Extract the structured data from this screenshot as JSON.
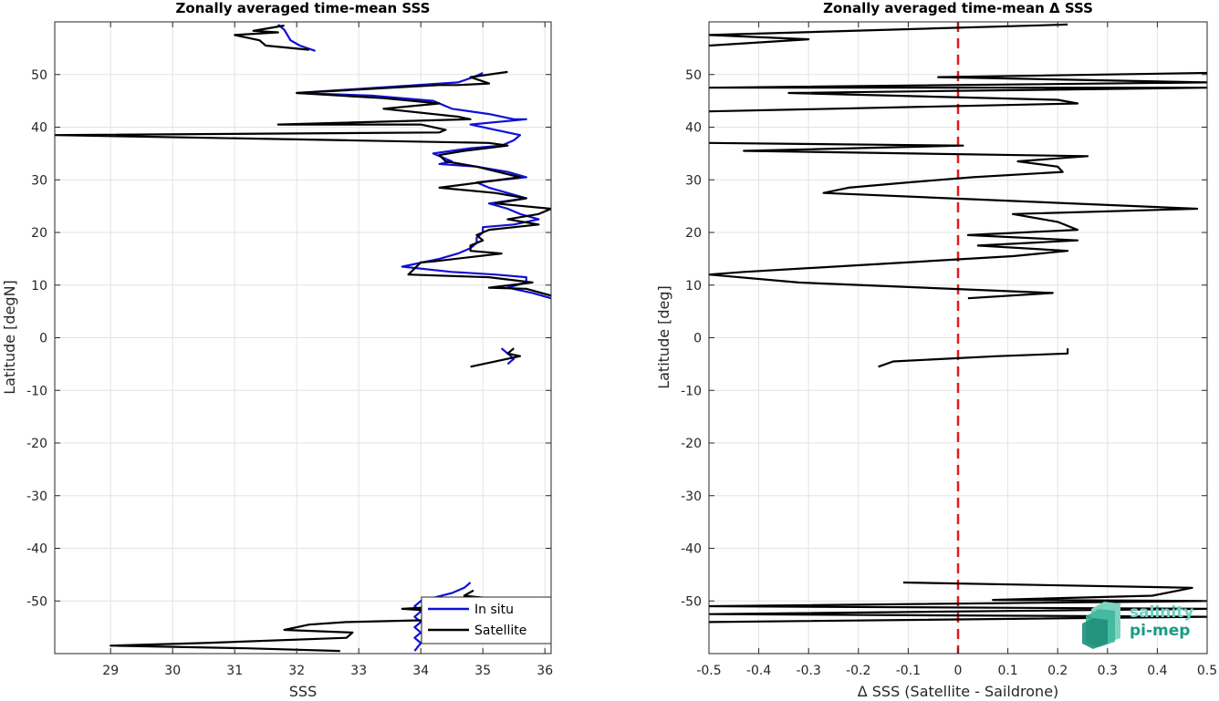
{
  "chart_data": [
    {
      "type": "line",
      "title": "Zonally averaged time-mean SSS",
      "xlabel": "SSS",
      "ylabel": "Latitude [degN]",
      "xlim": [
        28.1,
        36.1
      ],
      "ylim": [
        -60,
        60
      ],
      "xticks": [
        29,
        30,
        31,
        32,
        33,
        34,
        35,
        36
      ],
      "yticks": [
        -50,
        -40,
        -30,
        -20,
        -10,
        0,
        10,
        20,
        30,
        40,
        50
      ],
      "grid": true,
      "legend": {
        "position": "bottom-right",
        "entries": [
          "In situ",
          "Satellite"
        ]
      },
      "series": [
        {
          "name": "In situ",
          "color": "#1010d6",
          "segments": [
            [
              [
                31.7,
                59.5
              ],
              [
                31.8,
                58.5
              ],
              [
                31.85,
                57.5
              ],
              [
                31.9,
                56.5
              ],
              [
                32.05,
                55.5
              ],
              [
                32.3,
                54.5
              ]
            ],
            [
              [
                35.0,
                50.3
              ],
              [
                34.85,
                49.5
              ],
              [
                34.6,
                48.5
              ],
              [
                32.0,
                46.5
              ],
              [
                33.2,
                46.0
              ],
              [
                33.7,
                45.5
              ],
              [
                34.2,
                45.0
              ],
              [
                34.4,
                44.0
              ],
              [
                34.5,
                43.5
              ],
              [
                35.1,
                42.5
              ],
              [
                35.5,
                41.5
              ],
              [
                35.7,
                41.5
              ],
              [
                34.8,
                40.5
              ],
              [
                35.2,
                39.5
              ],
              [
                35.6,
                38.5
              ],
              [
                35.5,
                37.5
              ],
              [
                35.3,
                36.5
              ],
              [
                34.8,
                36.0
              ],
              [
                34.2,
                35.0
              ],
              [
                34.3,
                34.5
              ],
              [
                34.5,
                33.5
              ],
              [
                34.3,
                33.0
              ],
              [
                34.9,
                32.5
              ],
              [
                35.4,
                31.5
              ],
              [
                35.7,
                30.5
              ],
              [
                34.9,
                29.5
              ],
              [
                35.1,
                28.5
              ],
              [
                35.4,
                27.5
              ],
              [
                35.7,
                26.5
              ],
              [
                35.1,
                25.5
              ],
              [
                35.4,
                24.5
              ],
              [
                35.6,
                23.5
              ],
              [
                35.9,
                22.5
              ],
              [
                35.5,
                21.5
              ],
              [
                35.0,
                21.0
              ],
              [
                35.0,
                20.0
              ],
              [
                34.9,
                19.0
              ],
              [
                34.9,
                18.0
              ],
              [
                34.8,
                17.0
              ],
              [
                34.6,
                16.0
              ],
              [
                34.3,
                15.0
              ],
              [
                33.7,
                13.5
              ],
              [
                34.5,
                12.5
              ],
              [
                35.2,
                12.0
              ],
              [
                35.7,
                11.5
              ],
              [
                35.7,
                10.5
              ],
              [
                35.4,
                9.5
              ],
              [
                35.8,
                8.5
              ],
              [
                36.1,
                7.5
              ]
            ],
            [
              [
                35.3,
                -2.0
              ],
              [
                35.4,
                -3.0
              ],
              [
                35.5,
                -4.0
              ],
              [
                35.4,
                -5.0
              ]
            ],
            [
              [
                34.8,
                -46.5
              ],
              [
                34.7,
                -47.5
              ],
              [
                34.5,
                -48.5
              ],
              [
                34.0,
                -50.0
              ],
              [
                33.9,
                -51.0
              ],
              [
                34.0,
                -52.0
              ],
              [
                33.9,
                -53.0
              ],
              [
                34.0,
                -54.0
              ],
              [
                33.9,
                -55.0
              ],
              [
                34.0,
                -56.0
              ],
              [
                33.9,
                -57.0
              ],
              [
                34.0,
                -58.0
              ],
              [
                33.9,
                -59.5
              ]
            ]
          ]
        },
        {
          "name": "Satellite",
          "color": "#000000",
          "segments": [
            [
              [
                31.8,
                59.3
              ],
              [
                31.5,
                58.7
              ],
              [
                31.3,
                58.3
              ],
              [
                31.7,
                58.0
              ],
              [
                31.0,
                57.5
              ],
              [
                31.4,
                56.5
              ],
              [
                31.5,
                55.5
              ],
              [
                32.2,
                54.7
              ]
            ],
            [
              [
                35.4,
                50.5
              ],
              [
                34.8,
                49.5
              ],
              [
                35.1,
                48.3
              ],
              [
                34.6,
                48.0
              ],
              [
                34.3,
                48.0
              ],
              [
                32.0,
                46.5
              ],
              [
                33.4,
                45.5
              ],
              [
                34.3,
                44.5
              ],
              [
                33.4,
                43.5
              ],
              [
                34.6,
                42.0
              ],
              [
                34.8,
                41.5
              ],
              [
                31.7,
                40.5
              ],
              [
                34.0,
                40.5
              ],
              [
                34.4,
                39.5
              ],
              [
                34.3,
                39.0
              ],
              [
                28.1,
                38.5
              ],
              [
                32.8,
                37.5
              ],
              [
                35.1,
                37.0
              ],
              [
                35.4,
                36.5
              ],
              [
                34.7,
                35.5
              ],
              [
                34.3,
                34.7
              ],
              [
                34.4,
                33.5
              ],
              [
                34.9,
                32.5
              ],
              [
                35.6,
                30.5
              ],
              [
                34.3,
                28.5
              ],
              [
                35.2,
                27.5
              ],
              [
                35.7,
                26.5
              ],
              [
                35.2,
                25.5
              ],
              [
                36.1,
                24.5
              ],
              [
                35.9,
                23.5
              ],
              [
                35.4,
                22.5
              ],
              [
                35.9,
                21.5
              ],
              [
                35.1,
                20.5
              ],
              [
                34.9,
                19.5
              ],
              [
                35.0,
                18.5
              ],
              [
                34.8,
                17.5
              ],
              [
                34.8,
                16.5
              ],
              [
                35.3,
                16.0
              ],
              [
                34.2,
                14.5
              ],
              [
                34.0,
                14.3
              ],
              [
                33.8,
                12.0
              ],
              [
                35.1,
                11.5
              ],
              [
                35.8,
                10.5
              ],
              [
                35.1,
                9.5
              ],
              [
                35.7,
                9.3
              ],
              [
                36.1,
                8.0
              ]
            ],
            [
              [
                35.5,
                -2.0
              ],
              [
                35.4,
                -3.0
              ],
              [
                35.6,
                -3.5
              ],
              [
                34.8,
                -5.5
              ]
            ],
            [
              [
                34.85,
                -48.0
              ],
              [
                34.7,
                -49.0
              ],
              [
                35.1,
                -49.5
              ],
              [
                34.85,
                -50.0
              ],
              [
                34.5,
                -51.0
              ],
              [
                33.7,
                -51.5
              ],
              [
                34.4,
                -52.0
              ],
              [
                34.8,
                -53.0
              ],
              [
                34.6,
                -53.5
              ],
              [
                32.8,
                -54.0
              ],
              [
                32.2,
                -54.5
              ],
              [
                31.8,
                -55.5
              ],
              [
                32.9,
                -56.0
              ],
              [
                32.8,
                -57.0
              ],
              [
                30.5,
                -58.0
              ],
              [
                29.0,
                -58.5
              ],
              [
                31.2,
                -59.0
              ],
              [
                32.7,
                -59.5
              ]
            ]
          ]
        }
      ]
    },
    {
      "type": "line",
      "title": "Zonally averaged time-mean Δ SSS",
      "xlabel": "Δ SSS (Satellite - Saildrone)",
      "ylabel": "Latitude [deg]",
      "xlim": [
        -0.5,
        0.5
      ],
      "ylim": [
        -60,
        60
      ],
      "xticks": [
        -0.5,
        -0.4,
        -0.3,
        -0.2,
        -0.1,
        0,
        0.1,
        0.2,
        0.3,
        0.4,
        0.5
      ],
      "yticks": [
        -50,
        -40,
        -30,
        -20,
        -10,
        0,
        10,
        20,
        30,
        40,
        50
      ],
      "grid": true,
      "reference_line": {
        "x": 0,
        "color": "#e31a1c",
        "style": "dashed"
      },
      "series": [
        {
          "color": "#000000",
          "segments": [
            [
              [
                0.22,
                59.5
              ],
              [
                -0.5,
                57.5
              ],
              [
                -0.3,
                56.7
              ],
              [
                -0.5,
                55.5
              ]
            ],
            [
              [
                0.5,
                50.3
              ],
              [
                -0.04,
                49.5
              ],
              [
                0.5,
                48.5
              ],
              [
                -0.5,
                47.5
              ],
              [
                0.5,
                47.5
              ],
              [
                -0.34,
                46.5
              ],
              [
                0.2,
                45.2
              ],
              [
                0.24,
                44.5
              ],
              [
                -0.5,
                43.0
              ]
            ],
            [
              [
                -0.5,
                37.0
              ],
              [
                0.01,
                36.5
              ],
              [
                -0.43,
                35.5
              ],
              [
                0.26,
                34.5
              ],
              [
                0.12,
                33.5
              ],
              [
                0.2,
                32.5
              ],
              [
                0.21,
                31.5
              ],
              [
                0.03,
                30.5
              ],
              [
                -0.1,
                29.5
              ],
              [
                -0.22,
                28.5
              ],
              [
                -0.27,
                27.5
              ],
              [
                0.48,
                24.5
              ],
              [
                0.11,
                23.5
              ],
              [
                0.2,
                22.0
              ],
              [
                0.24,
                20.5
              ],
              [
                0.02,
                19.5
              ],
              [
                0.24,
                18.5
              ],
              [
                0.04,
                17.5
              ],
              [
                0.22,
                16.5
              ],
              [
                0.11,
                15.5
              ],
              [
                -0.43,
                12.5
              ],
              [
                -0.5,
                12.0
              ],
              [
                -0.32,
                10.5
              ],
              [
                0.19,
                8.5
              ],
              [
                0.02,
                7.5
              ]
            ],
            [
              [
                0.22,
                -2.0
              ],
              [
                0.22,
                -3.0
              ],
              [
                0.08,
                -3.5
              ],
              [
                -0.13,
                -4.5
              ],
              [
                -0.16,
                -5.5
              ]
            ],
            [
              [
                -0.11,
                -46.5
              ],
              [
                0.47,
                -47.5
              ],
              [
                0.39,
                -49.0
              ],
              [
                0.07,
                -49.8
              ],
              [
                0.5,
                -50.0
              ],
              [
                -0.5,
                -51.0
              ],
              [
                0.5,
                -51.5
              ],
              [
                -0.5,
                -52.5
              ],
              [
                0.5,
                -53.0
              ],
              [
                -0.5,
                -54.0
              ]
            ]
          ]
        }
      ]
    }
  ],
  "logo": {
    "line1": "salinity",
    "line2": "pi-mep"
  }
}
